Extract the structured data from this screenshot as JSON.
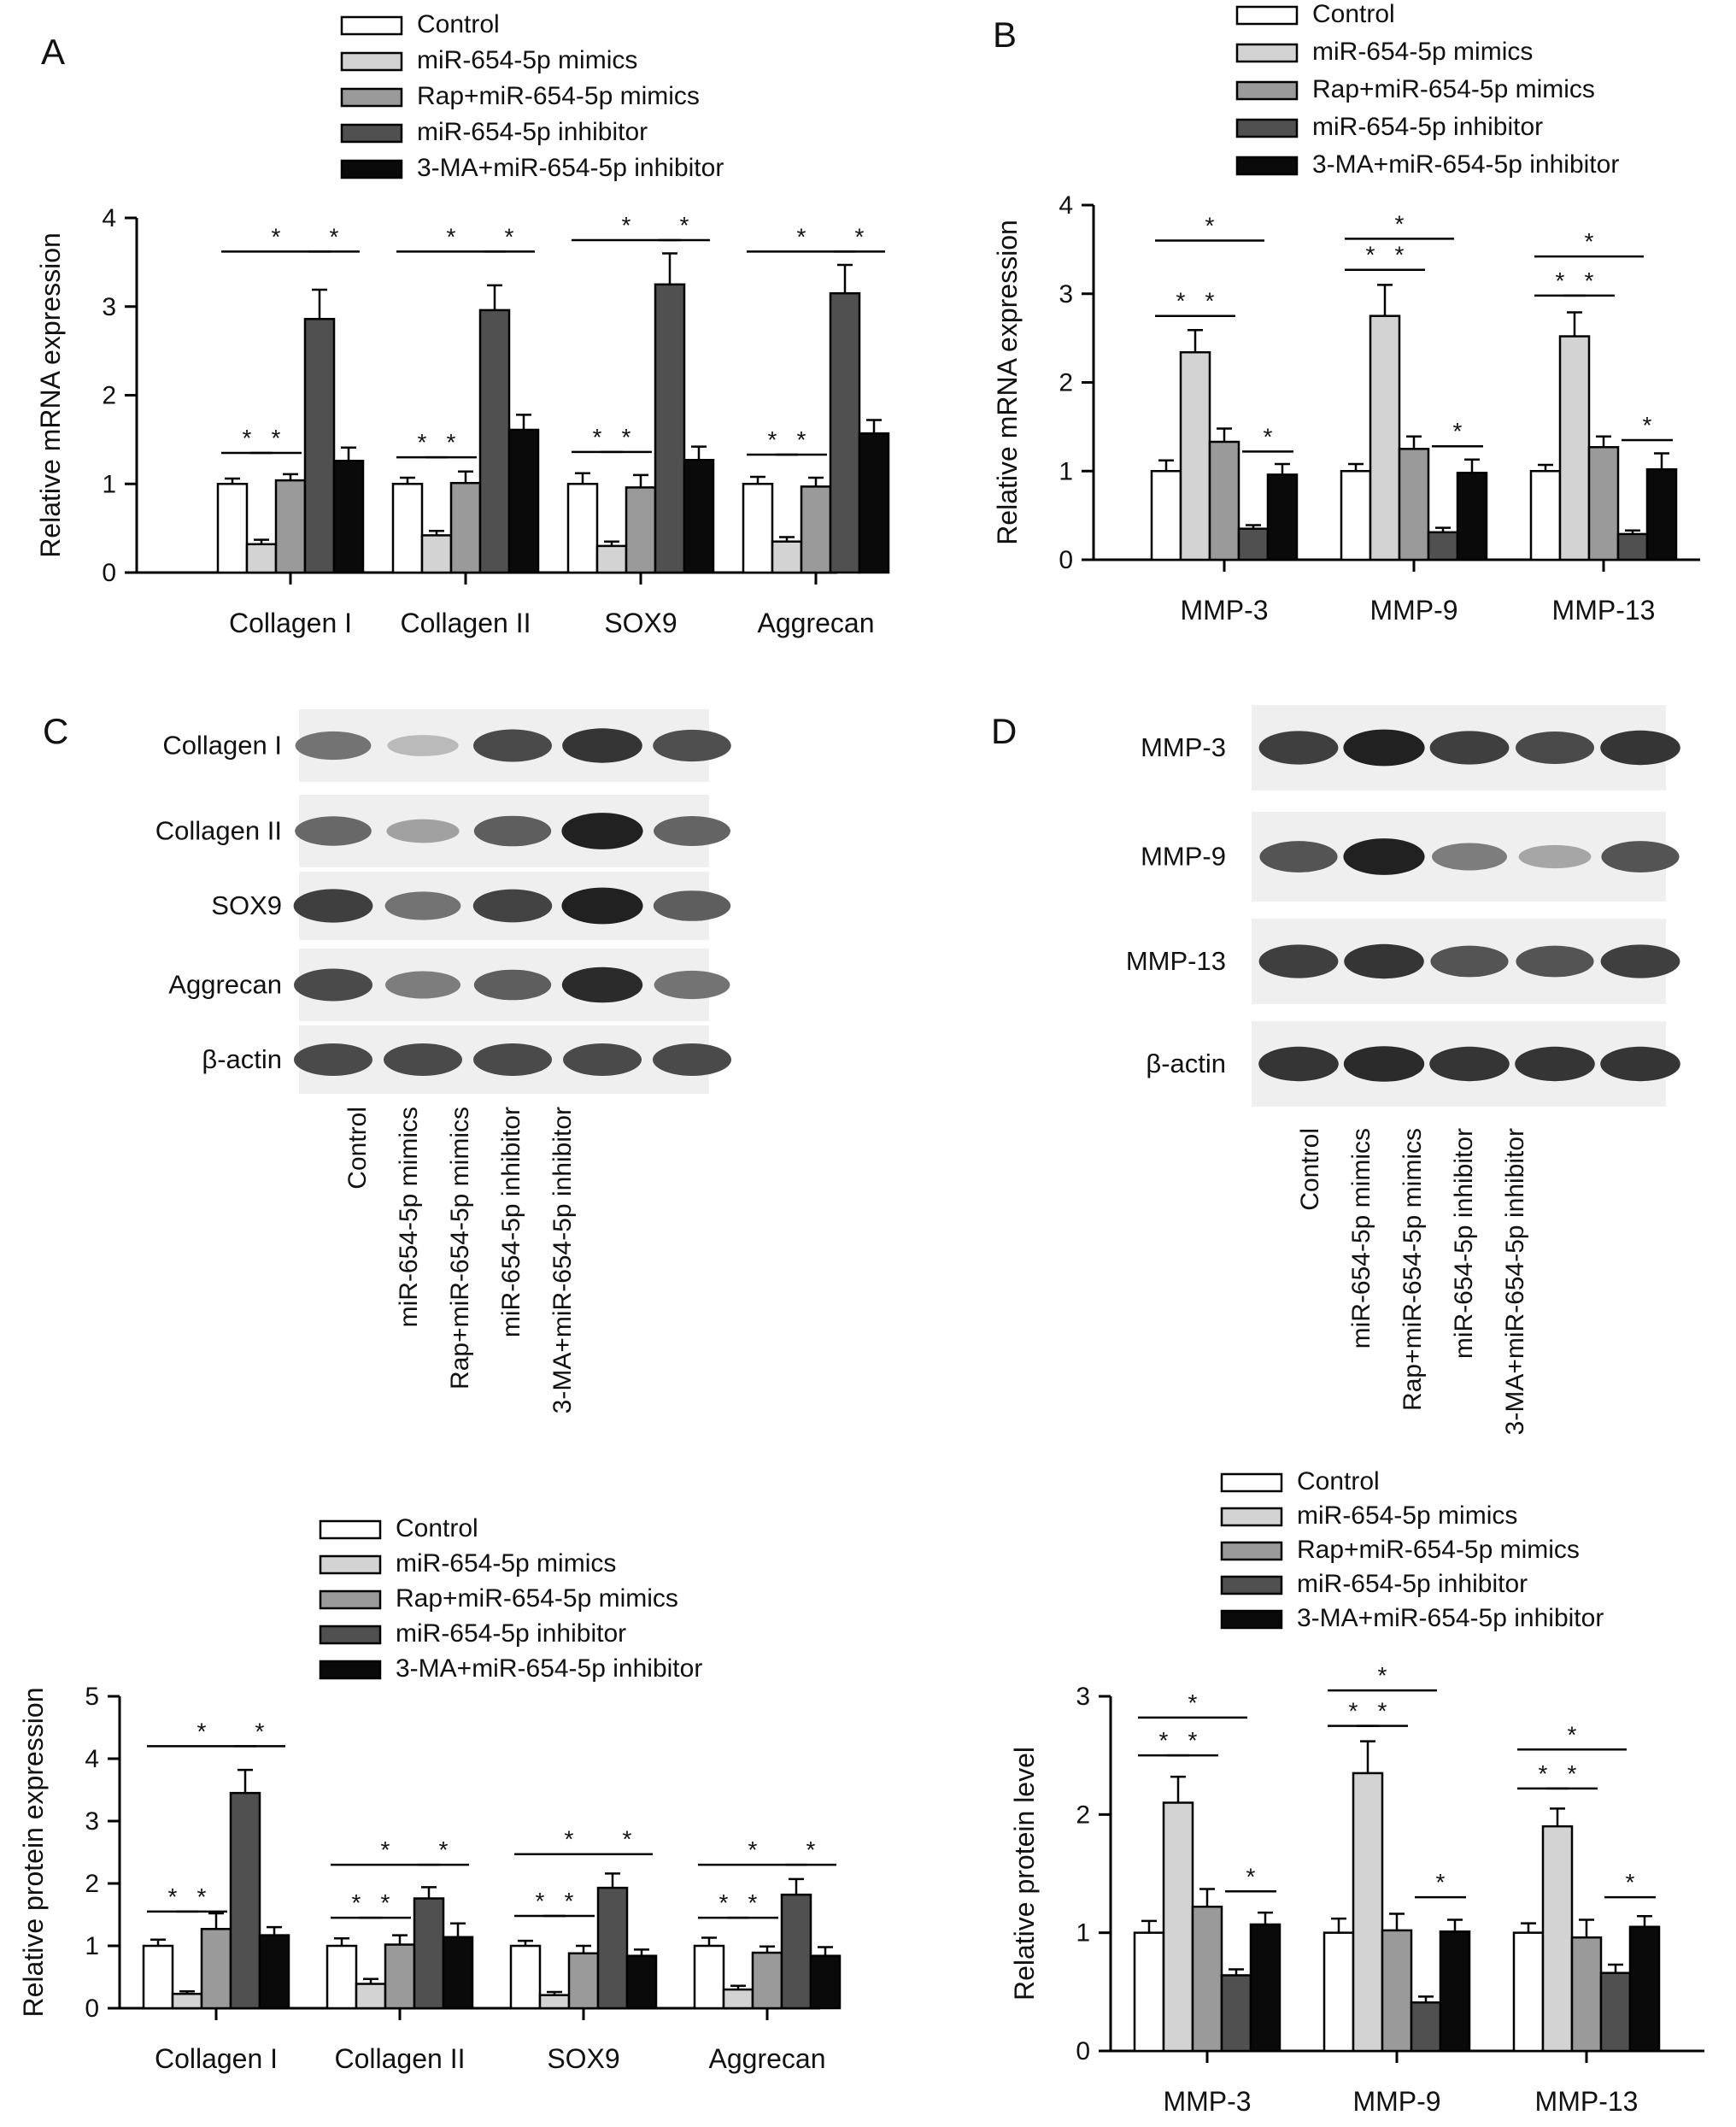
{
  "chart_data": [
    {
      "panel_label": "A",
      "type": "bar",
      "ylabel": "Relative mRNA expression",
      "ylim": [
        0,
        4
      ],
      "yticks": [
        "0",
        "1",
        "2",
        "3",
        "4"
      ],
      "categories": [
        "Collagen I",
        "Collagen II",
        "SOX9",
        "Aggrecan"
      ],
      "series": [
        {
          "name": "Control",
          "color": "#ffffff",
          "values": [
            1.0,
            1.0,
            1.0,
            1.0
          ],
          "errors": [
            0.06,
            0.07,
            0.12,
            0.08
          ]
        },
        {
          "name": "miR-654-5p mimics",
          "color": "#d3d3d3",
          "values": [
            0.32,
            0.42,
            0.3,
            0.35
          ],
          "errors": [
            0.05,
            0.05,
            0.05,
            0.05
          ]
        },
        {
          "name": "Rap+miR-654-5p mimics",
          "color": "#9a9a9a",
          "values": [
            1.04,
            1.01,
            0.96,
            0.97
          ],
          "errors": [
            0.07,
            0.13,
            0.14,
            0.1
          ]
        },
        {
          "name": "miR-654-5p inhibitor",
          "color": "#505050",
          "values": [
            2.86,
            2.96,
            3.25,
            3.15
          ],
          "errors": [
            0.33,
            0.28,
            0.35,
            0.32
          ]
        },
        {
          "name": "3-MA+miR-654-5p inhibitor",
          "color": "#0a0a0a",
          "values": [
            1.26,
            1.61,
            1.27,
            1.57
          ],
          "errors": [
            0.15,
            0.17,
            0.15,
            0.15
          ]
        }
      ],
      "significance": [
        {
          "cat": 0,
          "a": 0,
          "b": 1,
          "y": 1.35
        },
        {
          "cat": 0,
          "a": 1,
          "b": 2,
          "y": 1.35
        },
        {
          "cat": 0,
          "a": 0,
          "b": 3,
          "y": 3.62
        },
        {
          "cat": 0,
          "a": 3,
          "b": 4,
          "y": 3.62
        },
        {
          "cat": 1,
          "a": 0,
          "b": 1,
          "y": 1.3
        },
        {
          "cat": 1,
          "a": 1,
          "b": 2,
          "y": 1.3
        },
        {
          "cat": 1,
          "a": 0,
          "b": 3,
          "y": 3.62
        },
        {
          "cat": 1,
          "a": 3,
          "b": 4,
          "y": 3.62
        },
        {
          "cat": 2,
          "a": 0,
          "b": 1,
          "y": 1.36
        },
        {
          "cat": 2,
          "a": 1,
          "b": 2,
          "y": 1.36
        },
        {
          "cat": 2,
          "a": 0,
          "b": 3,
          "y": 3.75
        },
        {
          "cat": 2,
          "a": 3,
          "b": 4,
          "y": 3.75
        },
        {
          "cat": 3,
          "a": 0,
          "b": 1,
          "y": 1.33
        },
        {
          "cat": 3,
          "a": 1,
          "b": 2,
          "y": 1.33
        },
        {
          "cat": 3,
          "a": 0,
          "b": 3,
          "y": 3.62
        },
        {
          "cat": 3,
          "a": 3,
          "b": 4,
          "y": 3.62
        }
      ]
    },
    {
      "panel_label": "B",
      "type": "bar",
      "ylabel": "Relative mRNA expression",
      "ylim": [
        0,
        4
      ],
      "yticks": [
        "0",
        "1",
        "2",
        "3",
        "4"
      ],
      "categories": [
        "MMP-3",
        "MMP-9",
        "MMP-13"
      ],
      "series": [
        {
          "name": "Control",
          "color": "#ffffff",
          "values": [
            1.0,
            1.0,
            1.0
          ],
          "errors": [
            0.12,
            0.08,
            0.07
          ]
        },
        {
          "name": "miR-654-5p mimics",
          "color": "#d3d3d3",
          "values": [
            2.34,
            2.75,
            2.52
          ],
          "errors": [
            0.25,
            0.35,
            0.27
          ]
        },
        {
          "name": "Rap+miR-654-5p mimics",
          "color": "#9a9a9a",
          "values": [
            1.33,
            1.25,
            1.27
          ],
          "errors": [
            0.15,
            0.14,
            0.12
          ]
        },
        {
          "name": "miR-654-5p inhibitor",
          "color": "#505050",
          "values": [
            0.35,
            0.31,
            0.29
          ],
          "errors": [
            0.04,
            0.05,
            0.04
          ]
        },
        {
          "name": "3-MA+miR-654-5p inhibitor",
          "color": "#0a0a0a",
          "values": [
            0.96,
            0.98,
            1.02
          ],
          "errors": [
            0.12,
            0.15,
            0.18
          ]
        }
      ],
      "significance": [
        {
          "cat": 0,
          "a": 0,
          "b": 1,
          "y": 2.75
        },
        {
          "cat": 0,
          "a": 1,
          "b": 2,
          "y": 2.75
        },
        {
          "cat": 0,
          "a": 0,
          "b": 3,
          "y": 3.6
        },
        {
          "cat": 0,
          "a": 3,
          "b": 4,
          "y": 1.22
        },
        {
          "cat": 1,
          "a": 0,
          "b": 1,
          "y": 3.27
        },
        {
          "cat": 1,
          "a": 1,
          "b": 2,
          "y": 3.27
        },
        {
          "cat": 1,
          "a": 0,
          "b": 3,
          "y": 3.62
        },
        {
          "cat": 1,
          "a": 3,
          "b": 4,
          "y": 1.28
        },
        {
          "cat": 2,
          "a": 0,
          "b": 1,
          "y": 2.98
        },
        {
          "cat": 2,
          "a": 1,
          "b": 2,
          "y": 2.98
        },
        {
          "cat": 2,
          "a": 0,
          "b": 3,
          "y": 3.42
        },
        {
          "cat": 2,
          "a": 3,
          "b": 4,
          "y": 1.35
        }
      ]
    },
    {
      "panel_label": "",
      "type": "bar",
      "ylabel": "Relative protein expression",
      "ylim": [
        0,
        5
      ],
      "yticks": [
        "0",
        "1",
        "2",
        "3",
        "4",
        "5"
      ],
      "categories": [
        "Collagen I",
        "Collagen II",
        "SOX9",
        "Aggrecan"
      ],
      "series": [
        {
          "name": "Control",
          "color": "#ffffff",
          "values": [
            1.0,
            1.0,
            1.0,
            1.0
          ],
          "errors": [
            0.1,
            0.12,
            0.08,
            0.13
          ]
        },
        {
          "name": "miR-654-5p mimics",
          "color": "#d3d3d3",
          "values": [
            0.23,
            0.39,
            0.21,
            0.3
          ],
          "errors": [
            0.04,
            0.08,
            0.05,
            0.06
          ]
        },
        {
          "name": "Rap+miR-654-5p mimics",
          "color": "#9a9a9a",
          "values": [
            1.27,
            1.02,
            0.88,
            0.89
          ],
          "errors": [
            0.25,
            0.15,
            0.12,
            0.1
          ]
        },
        {
          "name": "miR-654-5p inhibitor",
          "color": "#505050",
          "values": [
            3.45,
            1.76,
            1.93,
            1.82
          ],
          "errors": [
            0.37,
            0.18,
            0.23,
            0.25
          ]
        },
        {
          "name": "3-MA+miR-654-5p inhibitor",
          "color": "#0a0a0a",
          "values": [
            1.17,
            1.14,
            0.84,
            0.84
          ],
          "errors": [
            0.13,
            0.22,
            0.1,
            0.14
          ]
        }
      ],
      "significance": [
        {
          "cat": 0,
          "a": 0,
          "b": 1,
          "y": 1.55
        },
        {
          "cat": 0,
          "a": 1,
          "b": 2,
          "y": 1.55
        },
        {
          "cat": 0,
          "a": 0,
          "b": 3,
          "y": 4.2
        },
        {
          "cat": 0,
          "a": 3,
          "b": 4,
          "y": 4.2
        },
        {
          "cat": 1,
          "a": 0,
          "b": 1,
          "y": 1.45
        },
        {
          "cat": 1,
          "a": 1,
          "b": 2,
          "y": 1.45
        },
        {
          "cat": 1,
          "a": 0,
          "b": 3,
          "y": 2.3
        },
        {
          "cat": 1,
          "a": 3,
          "b": 4,
          "y": 2.3
        },
        {
          "cat": 2,
          "a": 0,
          "b": 1,
          "y": 1.48
        },
        {
          "cat": 2,
          "a": 1,
          "b": 2,
          "y": 1.48
        },
        {
          "cat": 2,
          "a": 0,
          "b": 3,
          "y": 2.47
        },
        {
          "cat": 2,
          "a": 3,
          "b": 4,
          "y": 2.47
        },
        {
          "cat": 3,
          "a": 0,
          "b": 1,
          "y": 1.45
        },
        {
          "cat": 3,
          "a": 1,
          "b": 2,
          "y": 1.45
        },
        {
          "cat": 3,
          "a": 0,
          "b": 3,
          "y": 2.3
        },
        {
          "cat": 3,
          "a": 3,
          "b": 4,
          "y": 2.3
        }
      ]
    },
    {
      "panel_label": "",
      "type": "bar",
      "ylabel": "Relative protein level",
      "ylim": [
        0,
        3
      ],
      "yticks": [
        "0",
        "1",
        "2",
        "3"
      ],
      "categories": [
        "MMP-3",
        "MMP-9",
        "MMP-13"
      ],
      "series": [
        {
          "name": "Control",
          "color": "#ffffff",
          "values": [
            1.0,
            1.0,
            1.0
          ],
          "errors": [
            0.1,
            0.12,
            0.08
          ]
        },
        {
          "name": "miR-654-5p mimics",
          "color": "#d3d3d3",
          "values": [
            2.1,
            2.35,
            1.9
          ],
          "errors": [
            0.22,
            0.27,
            0.15
          ]
        },
        {
          "name": "Rap+miR-654-5p mimics",
          "color": "#9a9a9a",
          "values": [
            1.22,
            1.02,
            0.96
          ],
          "errors": [
            0.15,
            0.14,
            0.15
          ]
        },
        {
          "name": "miR-654-5p inhibitor",
          "color": "#505050",
          "values": [
            0.64,
            0.41,
            0.66
          ],
          "errors": [
            0.05,
            0.05,
            0.07
          ]
        },
        {
          "name": "3-MA+miR-654-5p inhibitor",
          "color": "#0a0a0a",
          "values": [
            1.07,
            1.01,
            1.05
          ],
          "errors": [
            0.1,
            0.1,
            0.09
          ]
        }
      ],
      "significance": [
        {
          "cat": 0,
          "a": 0,
          "b": 1,
          "y": 2.5
        },
        {
          "cat": 0,
          "a": 1,
          "b": 2,
          "y": 2.5
        },
        {
          "cat": 0,
          "a": 0,
          "b": 3,
          "y": 2.82
        },
        {
          "cat": 0,
          "a": 3,
          "b": 4,
          "y": 1.35
        },
        {
          "cat": 1,
          "a": 0,
          "b": 1,
          "y": 2.75
        },
        {
          "cat": 1,
          "a": 1,
          "b": 2,
          "y": 2.75
        },
        {
          "cat": 1,
          "a": 0,
          "b": 3,
          "y": 3.05
        },
        {
          "cat": 1,
          "a": 3,
          "b": 4,
          "y": 1.3
        },
        {
          "cat": 2,
          "a": 0,
          "b": 1,
          "y": 2.22
        },
        {
          "cat": 2,
          "a": 1,
          "b": 2,
          "y": 2.22
        },
        {
          "cat": 2,
          "a": 0,
          "b": 3,
          "y": 2.55
        },
        {
          "cat": 2,
          "a": 3,
          "b": 4,
          "y": 1.3
        }
      ]
    }
  ],
  "significance_symbol": "*",
  "blots": [
    {
      "panel_label": "C",
      "rows": [
        {
          "label": "Collagen I",
          "intensities": [
            0.55,
            0.2,
            0.75,
            0.85,
            0.72
          ]
        },
        {
          "label": "Collagen II",
          "intensities": [
            0.6,
            0.32,
            0.65,
            0.95,
            0.62
          ]
        },
        {
          "label": "SOX9",
          "intensities": [
            0.8,
            0.55,
            0.78,
            0.95,
            0.65
          ]
        },
        {
          "label": "Aggrecan",
          "intensities": [
            0.75,
            0.5,
            0.65,
            0.9,
            0.55
          ]
        },
        {
          "label": "β-actin",
          "intensities": [
            0.75,
            0.75,
            0.75,
            0.75,
            0.75
          ]
        }
      ],
      "lanes": [
        "Control",
        "miR-654-5p mimics",
        "Rap+miR-654-5p mimics",
        "miR-654-5p inhibitor",
        "3-MA+miR-654-5p inhibitor"
      ]
    },
    {
      "panel_label": "D",
      "rows": [
        {
          "label": "MMP-3",
          "intensities": [
            0.8,
            0.95,
            0.8,
            0.75,
            0.85
          ]
        },
        {
          "label": "MMP-9",
          "intensities": [
            0.7,
            0.95,
            0.5,
            0.3,
            0.7
          ]
        },
        {
          "label": "MMP-13",
          "intensities": [
            0.8,
            0.85,
            0.7,
            0.7,
            0.8
          ]
        },
        {
          "label": "β-actin",
          "intensities": [
            0.85,
            0.9,
            0.85,
            0.85,
            0.85
          ]
        }
      ],
      "lanes": [
        "Control",
        "miR-654-5p mimics",
        "Rap+miR-654-5p mimics",
        "miR-654-5p inhibitor",
        "3-MA+miR-654-5p inhibitor"
      ]
    }
  ]
}
